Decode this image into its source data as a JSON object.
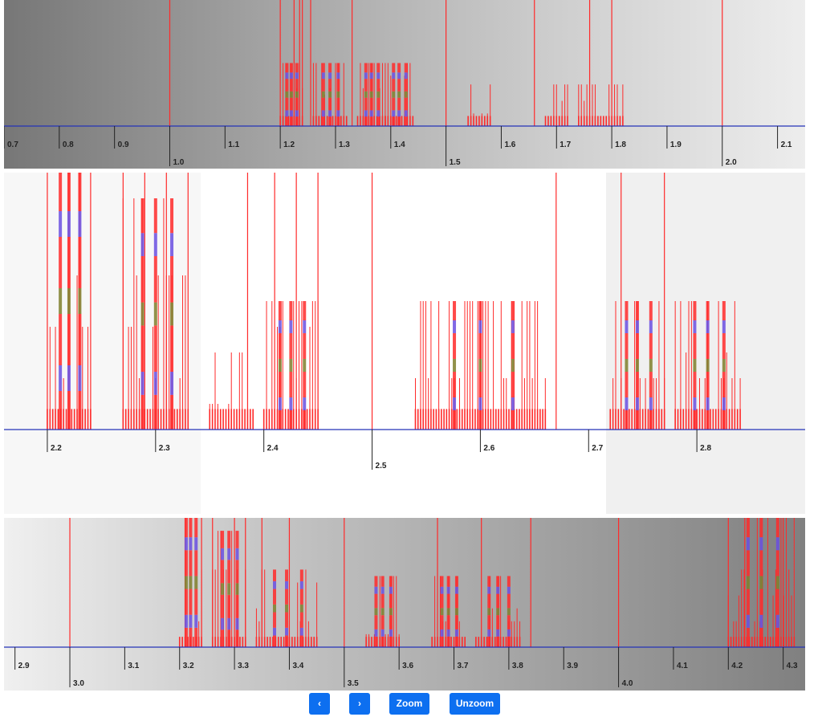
{
  "colors": {
    "axis": "#2433b8",
    "spike": "#ff2a2a",
    "blue": "#6a4fe0",
    "olive": "#7f7f2c",
    "tick": "#222222"
  },
  "controls": {
    "prev_label": "‹",
    "next_label": "›",
    "zoom_label": "Zoom",
    "unzoom_label": "Unzoom"
  },
  "chart_data": [
    {
      "type": "bar",
      "xlim": [
        0.7,
        2.15
      ],
      "ticks": [
        "0.7",
        "0.8",
        "0.9",
        "1.0",
        "1.1",
        "1.2",
        "1.3",
        "1.4",
        "1.5",
        "1.6",
        "1.7",
        "1.8",
        "1.9",
        "2.0",
        "2.1"
      ],
      "tick_values": [
        0.7,
        0.8,
        0.9,
        1.0,
        1.1,
        1.2,
        1.3,
        1.4,
        1.5,
        1.6,
        1.7,
        1.8,
        1.9,
        2.0,
        2.1
      ],
      "major_ticks": [
        "1.0",
        "1.5",
        "2.0"
      ],
      "full_lines": [
        1.0,
        1.2,
        1.225,
        1.235,
        1.24,
        1.255,
        1.33,
        1.5,
        1.66,
        1.76,
        1.8,
        2.0
      ],
      "clusters": [
        {
          "range": [
            1.2,
            1.24
          ],
          "heights": [
            0.5,
            0.5,
            0.5,
            0.3,
            0.25
          ]
        },
        {
          "range": [
            1.26,
            1.32
          ],
          "heights": [
            0.5,
            0.5,
            0.5,
            0.3,
            0.25
          ]
        },
        {
          "range": [
            1.34,
            1.39
          ],
          "heights": [
            0.5,
            0.3
          ]
        },
        {
          "range": [
            1.39,
            1.44
          ],
          "heights": [
            0.5,
            0.5,
            0.4,
            0.25
          ]
        },
        {
          "range": [
            1.54,
            1.58
          ],
          "heights": [
            0.33,
            0.1
          ]
        },
        {
          "range": [
            1.68,
            1.72
          ],
          "heights": [
            0.33,
            0.2
          ]
        },
        {
          "range": [
            1.74,
            1.82
          ],
          "heights": [
            0.33,
            0.2
          ]
        }
      ]
    },
    {
      "type": "bar",
      "xlim": [
        2.16,
        2.9
      ],
      "ticks": [
        "2.2",
        "2.3",
        "2.4",
        "2.5",
        "2.6",
        "2.7",
        "2.8"
      ],
      "tick_values": [
        2.2,
        2.3,
        2.4,
        2.5,
        2.6,
        2.7,
        2.8
      ],
      "major_ticks": [
        "2.5"
      ],
      "full_lines": [
        2.2,
        2.22,
        2.23,
        2.24,
        2.27,
        2.29,
        2.31,
        2.33,
        2.385,
        2.41,
        2.43,
        2.45,
        2.5,
        2.67,
        2.73,
        2.77
      ],
      "clusters": [
        {
          "range": [
            2.2,
            2.24
          ],
          "heights": [
            1.0,
            0.6,
            0.4,
            0.2
          ]
        },
        {
          "range": [
            2.27,
            2.33
          ],
          "heights": [
            0.9,
            0.6,
            0.4,
            0.2
          ]
        },
        {
          "range": [
            2.35,
            2.39
          ],
          "heights": [
            0.3,
            0.1
          ]
        },
        {
          "range": [
            2.4,
            2.45
          ],
          "heights": [
            0.5,
            0.5,
            0.4,
            0.2
          ]
        },
        {
          "range": [
            2.54,
            2.66
          ],
          "heights": [
            0.5,
            0.2
          ]
        },
        {
          "range": [
            2.72,
            2.77
          ],
          "heights": [
            0.5,
            0.2
          ]
        },
        {
          "range": [
            2.78,
            2.84
          ],
          "heights": [
            0.5,
            0.3,
            0.2
          ]
        }
      ]
    },
    {
      "type": "bar",
      "xlim": [
        2.88,
        4.34
      ],
      "ticks": [
        "2.9",
        "3.0",
        "3.1",
        "3.2",
        "3.3",
        "3.4",
        "3.5",
        "3.6",
        "3.7",
        "3.8",
        "3.9",
        "4.0",
        "4.1",
        "4.2",
        "4.3"
      ],
      "tick_values": [
        2.9,
        3.0,
        3.1,
        3.2,
        3.3,
        3.4,
        3.5,
        3.6,
        3.7,
        3.8,
        3.9,
        4.0,
        4.1,
        4.2,
        4.3
      ],
      "major_ticks": [
        "3.0",
        "3.5",
        "4.0"
      ],
      "full_lines": [
        3.0,
        3.21,
        3.24,
        3.26,
        3.3,
        3.32,
        3.35,
        3.4,
        3.5,
        3.67,
        3.75,
        3.84,
        4.0,
        4.2,
        4.23,
        4.3
      ],
      "clusters": [
        {
          "range": [
            3.2,
            3.24
          ],
          "heights": [
            1.0,
            0.6,
            0.4,
            0.2
          ]
        },
        {
          "range": [
            3.26,
            3.32
          ],
          "heights": [
            0.9,
            0.6,
            0.4,
            0.2
          ]
        },
        {
          "range": [
            3.34,
            3.45
          ],
          "heights": [
            0.6,
            0.5,
            0.3,
            0.2
          ]
        },
        {
          "range": [
            3.54,
            3.6
          ],
          "heights": [
            0.55,
            0.1
          ]
        },
        {
          "range": [
            3.66,
            3.72
          ],
          "heights": [
            0.55,
            0.2
          ]
        },
        {
          "range": [
            3.74,
            3.82
          ],
          "heights": [
            0.55,
            0.3,
            0.2
          ]
        },
        {
          "range": [
            4.2,
            4.32
          ],
          "heights": [
            1.0,
            0.6,
            0.4,
            0.2
          ]
        }
      ]
    }
  ]
}
